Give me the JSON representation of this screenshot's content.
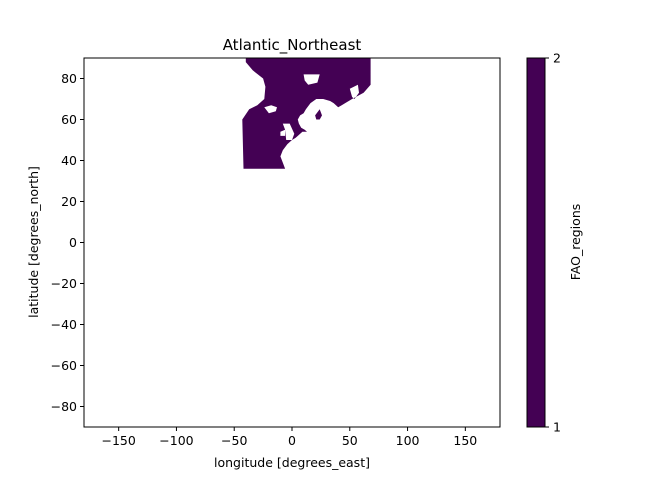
{
  "chart_data": {
    "type": "heatmap",
    "title": "Atlantic_Northeast",
    "xlabel": "longitude [degrees_east]",
    "ylabel": "latitude [degrees_north]",
    "xlim": [
      -180,
      180
    ],
    "ylim": [
      -90,
      90
    ],
    "xticks": [
      -150,
      -100,
      -50,
      0,
      50,
      100,
      150
    ],
    "xtick_labels": [
      "−150",
      "−100",
      "−50",
      "0",
      "50",
      "100",
      "150"
    ],
    "yticks": [
      -80,
      -60,
      -40,
      -20,
      0,
      20,
      40,
      60,
      80
    ],
    "ytick_labels": [
      "−80",
      "−60",
      "−40",
      "−20",
      "0",
      "20",
      "40",
      "60",
      "80"
    ],
    "grid": false,
    "colorbar": {
      "label": "FAO_regions",
      "ticks": [
        1,
        2
      ],
      "tick_labels": [
        "1",
        "2"
      ],
      "range": [
        1,
        2
      ]
    },
    "fill_color": "#440154",
    "region": {
      "name": "Atlantic_Northeast",
      "value": 2,
      "outline_lonlat": [
        [
          -40,
          90
        ],
        [
          68,
          90
        ],
        [
          68,
          77
        ],
        [
          62,
          73
        ],
        [
          52,
          70
        ],
        [
          46,
          68
        ],
        [
          43,
          67
        ],
        [
          40,
          66
        ],
        [
          36,
          68
        ],
        [
          33,
          69
        ],
        [
          27,
          70
        ],
        [
          21,
          70
        ],
        [
          16,
          68
        ],
        [
          12,
          65
        ],
        [
          10,
          63
        ],
        [
          7,
          62
        ],
        [
          5,
          60
        ],
        [
          6,
          58
        ],
        [
          8,
          56
        ],
        [
          11,
          55
        ],
        [
          13,
          54
        ],
        [
          9,
          54
        ],
        [
          5,
          52
        ],
        [
          3,
          51
        ],
        [
          0,
          50
        ],
        [
          -4,
          48
        ],
        [
          -8,
          45
        ],
        [
          -10,
          42
        ],
        [
          -8,
          39
        ],
        [
          -6,
          36
        ],
        [
          -42,
          36
        ],
        [
          -43,
          60
        ],
        [
          -37,
          65
        ],
        [
          -30,
          67
        ],
        [
          -24,
          70
        ],
        [
          -23,
          76
        ],
        [
          -25,
          80
        ],
        [
          -34,
          84
        ],
        [
          -40,
          88
        ]
      ],
      "holes_lonlat": [
        [
          [
            -24,
            66
          ],
          [
            -20,
            63
          ],
          [
            -14,
            64
          ],
          [
            -13,
            66
          ],
          [
            -18,
            67
          ]
        ],
        [
          [
            10,
            82
          ],
          [
            24,
            82
          ],
          [
            22,
            78
          ],
          [
            14,
            77
          ],
          [
            11,
            79
          ]
        ],
        [
          [
            -8,
            58
          ],
          [
            -2,
            58
          ],
          [
            2,
            53
          ],
          [
            0,
            50
          ],
          [
            -5,
            50
          ],
          [
            -6,
            55
          ]
        ],
        [
          [
            -10,
            54
          ],
          [
            -6,
            55
          ],
          [
            -6,
            52
          ],
          [
            -10,
            52
          ]
        ],
        [
          [
            50,
            75
          ],
          [
            57,
            77
          ],
          [
            58,
            73
          ],
          [
            54,
            70
          ],
          [
            52,
            71
          ]
        ],
        [
          [
            20,
            62
          ],
          [
            24,
            65
          ],
          [
            26,
            62
          ],
          [
            24,
            60
          ],
          [
            21,
            60
          ]
        ]
      ]
    }
  }
}
